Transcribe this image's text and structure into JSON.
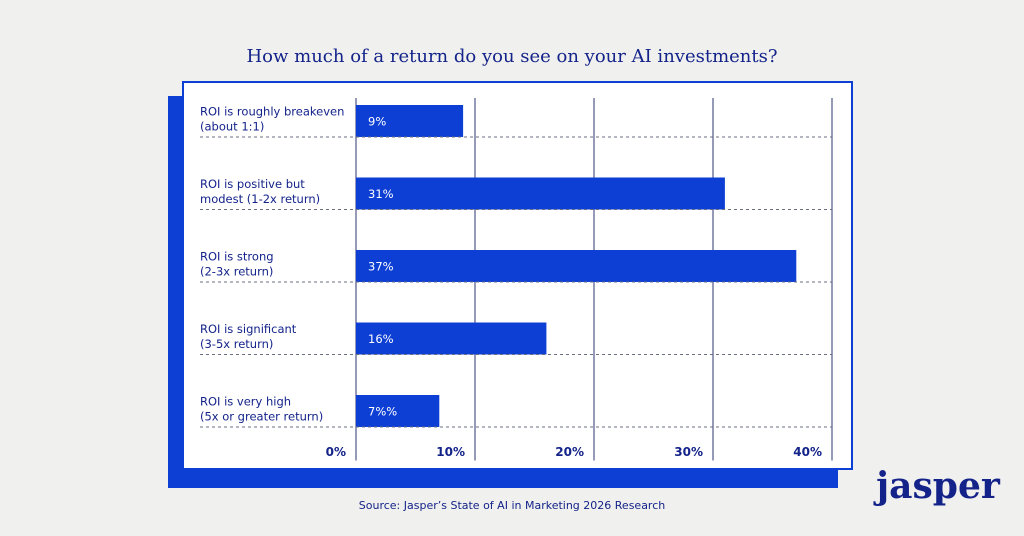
{
  "chart_data": {
    "type": "hbar",
    "title": "How much of a return do you see on your AI investments?",
    "categories": [
      "ROI is roughly breakeven\n(about 1:1)",
      "ROI is positive but\nmodest (1-2x return)",
      "ROI is strong\n(2-3x return)",
      "ROI is significant\n(3-5x return)",
      "ROI is very high\n(5x or greater return)"
    ],
    "values": [
      9,
      31,
      37,
      16,
      7
    ],
    "value_labels": [
      "9%",
      "31%",
      "37%",
      "16%",
      "7%%"
    ],
    "color": "#0d3fd4",
    "xlim": [
      0,
      40
    ],
    "xticks": [
      {
        "value": 0,
        "label": "0%"
      },
      {
        "value": 10,
        "label": "10%"
      },
      {
        "value": 20,
        "label": "20%"
      },
      {
        "value": 30,
        "label": "30%"
      },
      {
        "value": 40,
        "label": "40%"
      }
    ],
    "grid": true,
    "source": "Source: Jasper’s State of AI in Marketing 2026 Research"
  },
  "logo": "jasper"
}
